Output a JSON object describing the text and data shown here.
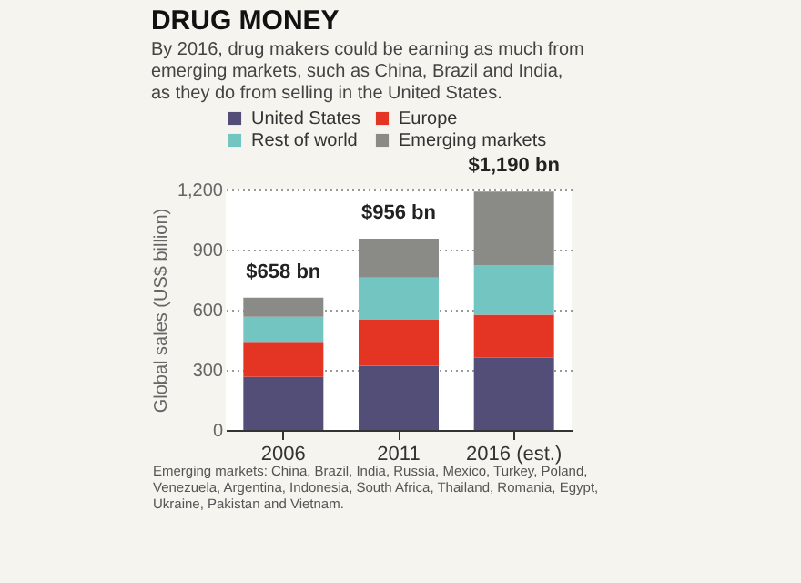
{
  "chart_data": {
    "type": "bar",
    "title": "DRUG MONEY",
    "subtitle": "By 2016, drug makers could be earning as much from emerging markets, such as China, Brazil and India, as they do from selling in the United States.",
    "ylabel": "Global sales (US$ billion)",
    "categories": [
      "2006",
      "2011",
      "2016 (est.)"
    ],
    "stacked": true,
    "series": [
      {
        "name": "United States",
        "color": "#524e78",
        "values": [
          265,
          320,
          360
        ]
      },
      {
        "name": "Europe",
        "color": "#e33424",
        "values": [
          175,
          230,
          215
        ]
      },
      {
        "name": "Rest of world",
        "color": "#72c5c0",
        "values": [
          125,
          210,
          245
        ]
      },
      {
        "name": "Emerging markets",
        "color": "#8a8a86",
        "values": [
          95,
          195,
          370
        ]
      }
    ],
    "totals": [
      "$658 bn",
      "$956 bn",
      "$1,190 bn"
    ],
    "ylim": [
      0,
      1200
    ],
    "yticks": [
      0,
      300,
      600,
      900,
      {
        "value": 1200,
        "label": "1,200"
      }
    ],
    "grid": "y",
    "legend": "top left",
    "annotations": [
      "Emerging markets: China, Brazil, India, Russia, Mexico, Turkey, Poland, Venezuela, Argentina, Indonesia, South Africa, Thailand, Romania, Egypt, Ukraine, Pakistan and Vietnam."
    ]
  }
}
